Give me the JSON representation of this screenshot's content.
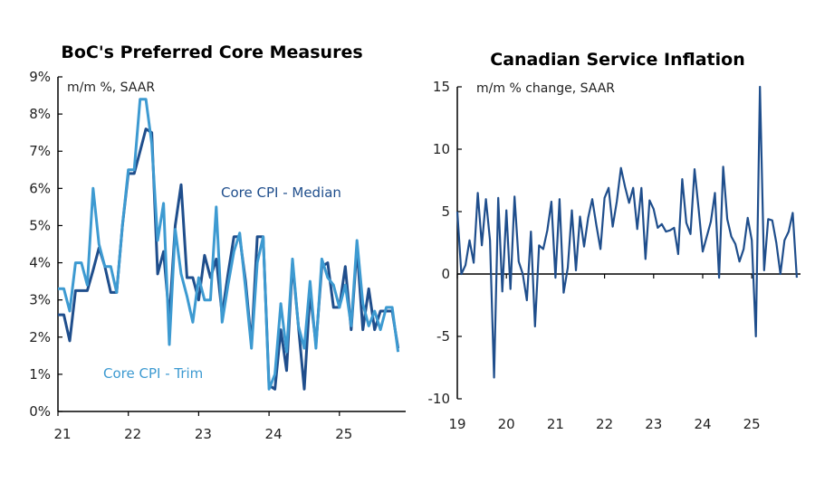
{
  "chart_data": [
    {
      "type": "line",
      "title": "BoC's Preferred Core Measures",
      "subtitle": "m/m %, SAAR",
      "x_ticks": [
        "21",
        "22",
        "23",
        "24",
        "25"
      ],
      "y_ticks": [
        "0%",
        "1%",
        "2%",
        "3%",
        "4%",
        "5%",
        "6%",
        "7%",
        "8%",
        "9%"
      ],
      "ylim": [
        0,
        9
      ],
      "x_start": "2021-01",
      "frequency": "monthly",
      "grid": false,
      "series": [
        {
          "name": "Core CPI - Median",
          "color": "#1f4e8c",
          "values": [
            2.6,
            2.6,
            1.9,
            3.25,
            3.25,
            3.25,
            3.8,
            4.4,
            3.9,
            3.2,
            3.2,
            5.0,
            6.4,
            6.4,
            7.0,
            7.6,
            7.5,
            3.7,
            4.3,
            2.5,
            5.0,
            6.1,
            3.6,
            3.6,
            3.0,
            4.2,
            3.6,
            4.1,
            2.6,
            3.7,
            4.7,
            4.7,
            3.5,
            1.8,
            4.7,
            4.7,
            0.7,
            0.6,
            2.2,
            1.1,
            4.0,
            2.3,
            0.6,
            3.2,
            1.8,
            3.9,
            4.0,
            2.8,
            2.8,
            3.9,
            2.2,
            4.4,
            2.2,
            3.3,
            2.2,
            2.7,
            2.7,
            2.7,
            1.7
          ]
        },
        {
          "name": "Core CPI - Trim",
          "color": "#3d9ad1",
          "values": [
            3.3,
            3.3,
            2.7,
            4.0,
            4.0,
            3.4,
            6.0,
            4.5,
            3.9,
            3.9,
            3.2,
            5.0,
            6.5,
            6.5,
            8.4,
            8.4,
            7.2,
            4.6,
            5.6,
            1.8,
            4.9,
            3.7,
            3.1,
            2.4,
            3.6,
            3.0,
            3.0,
            5.5,
            2.4,
            3.4,
            4.3,
            4.8,
            3.3,
            1.7,
            4.0,
            4.7,
            0.6,
            1.0,
            2.9,
            1.6,
            4.1,
            2.3,
            1.7,
            3.5,
            1.7,
            4.1,
            3.6,
            3.4,
            2.8,
            3.4,
            2.3,
            4.6,
            2.9,
            2.3,
            2.7,
            2.2,
            2.8,
            2.8,
            1.6
          ]
        }
      ]
    },
    {
      "type": "line",
      "title": "Canadian Service Inflation",
      "subtitle": "m/m % change, SAAR",
      "x_ticks": [
        "19",
        "20",
        "21",
        "22",
        "23",
        "24",
        "25"
      ],
      "y_ticks": [
        "-10",
        "-5",
        "0",
        "5",
        "10",
        "15"
      ],
      "ylim": [
        -10,
        15
      ],
      "x_start": "2019-01",
      "frequency": "monthly",
      "grid": false,
      "series": [
        {
          "color": "#1f4e8c",
          "values": [
            5.0,
            0,
            0.7,
            2.7,
            0.9,
            6.5,
            2.3,
            6.0,
            2.7,
            -8.3,
            6.1,
            -1.4,
            5.1,
            -1.2,
            6.2,
            1.0,
            0,
            -2.1,
            3.4,
            -4.2,
            2.3,
            2.0,
            3.5,
            5.8,
            -0.3,
            6.0,
            -1.5,
            0.5,
            5.1,
            0.3,
            4.6,
            2.2,
            4.5,
            6.0,
            3.9,
            2.0,
            6.1,
            6.9,
            3.8,
            5.8,
            8.5,
            7.0,
            5.7,
            6.9,
            3.6,
            6.9,
            1.2,
            5.9,
            5.2,
            3.7,
            4.0,
            3.4,
            3.5,
            3.7,
            1.6,
            7.6,
            4.1,
            3.2,
            8.4,
            5.2,
            1.8,
            3.0,
            4.2,
            6.5,
            -0.3,
            8.6,
            4.4,
            3.0,
            2.4,
            1.0,
            2.0,
            4.5,
            2.7,
            -5.0,
            15.0,
            0.3,
            4.4,
            4.3,
            2.5,
            0,
            2.7,
            3.4,
            4.9,
            -0.3
          ]
        }
      ]
    }
  ]
}
